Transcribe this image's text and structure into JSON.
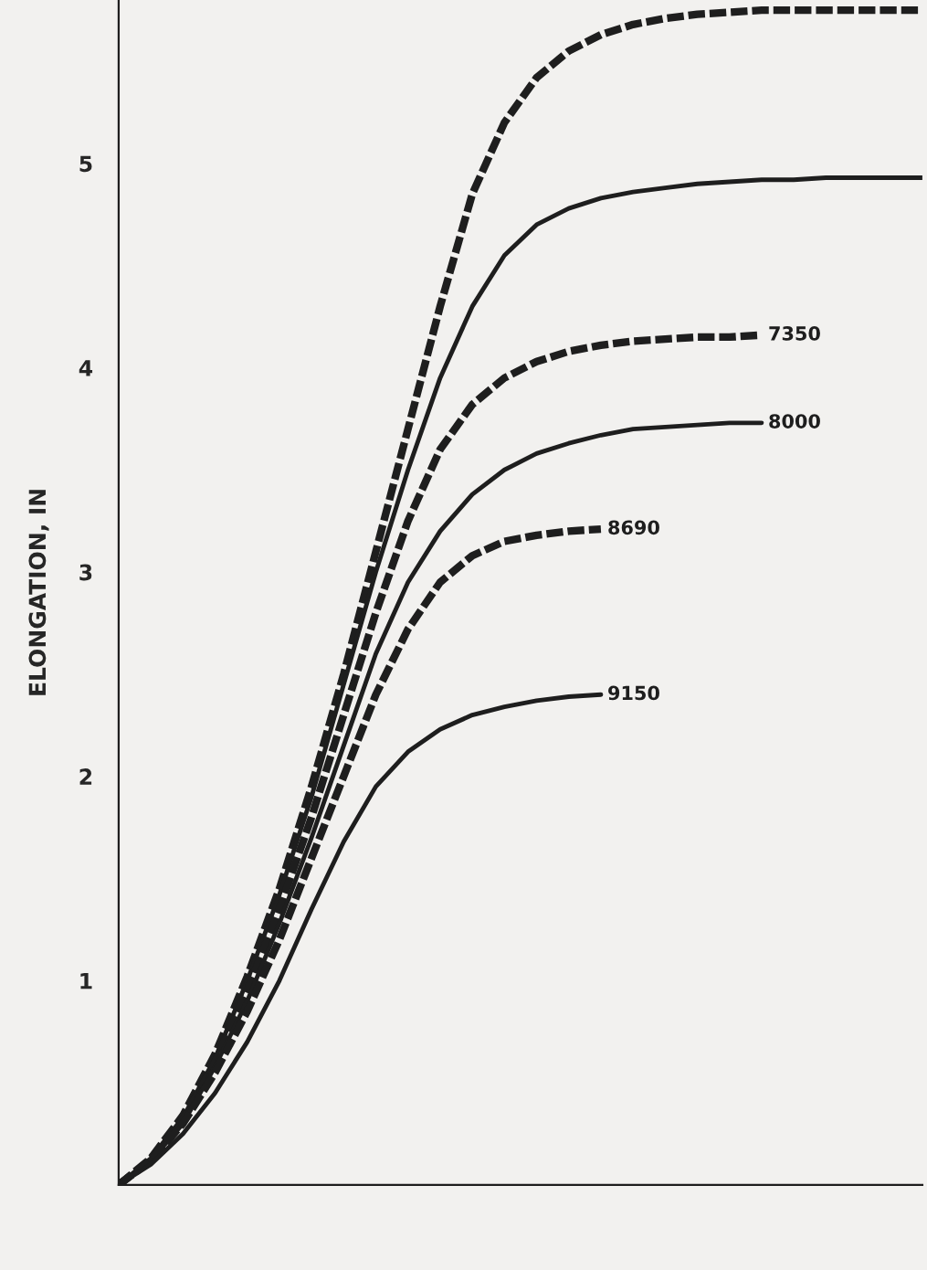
{
  "chart_data": {
    "type": "line",
    "ylabel": "ELONGATION, IN",
    "categories": [
      null,
      null,
      null,
      null,
      null,
      null,
      null,
      null,
      null,
      null,
      null,
      null,
      null,
      null,
      null,
      null,
      null,
      null,
      null,
      null,
      null,
      null,
      null,
      null,
      null,
      null
    ],
    "ylim": [
      0,
      5.8
    ],
    "yticks": [
      1,
      2,
      3,
      4,
      5
    ],
    "tick_labels": "y",
    "grid": false,
    "legend": false,
    "marker": "none",
    "series": [
      {
        "color": "#1e1e1e",
        "line_style": "dashed",
        "values": [
          0,
          0.13,
          0.34,
          0.64,
          1.02,
          1.45,
          1.95,
          2.5,
          3.1,
          3.7,
          4.3,
          4.85,
          5.2,
          5.42,
          5.55,
          5.63,
          5.68,
          5.71,
          5.73,
          5.74,
          5.75,
          5.75,
          5.75,
          5.75,
          5.75,
          5.75
        ]
      },
      {
        "color": "#1e1e1e",
        "line_style": "solid",
        "values": [
          0,
          0.13,
          0.33,
          0.62,
          1.0,
          1.42,
          1.9,
          2.45,
          3.0,
          3.5,
          3.95,
          4.3,
          4.55,
          4.7,
          4.78,
          4.83,
          4.86,
          4.88,
          4.9,
          4.91,
          4.92,
          4.92,
          4.93,
          4.93,
          4.93,
          4.93
        ]
      },
      {
        "name": "7350",
        "color": "#1e1e1e",
        "line_style": "dashed",
        "values": [
          0,
          0.12,
          0.32,
          0.6,
          0.95,
          1.35,
          1.8,
          2.3,
          2.8,
          3.25,
          3.6,
          3.82,
          3.95,
          4.03,
          4.08,
          4.11,
          4.13,
          4.14,
          4.15,
          4.15,
          4.16,
          null,
          null,
          null,
          null,
          null
        ]
      },
      {
        "name": "8000",
        "color": "#1e1e1e",
        "line_style": "solid",
        "values": [
          0,
          0.12,
          0.3,
          0.58,
          0.9,
          1.28,
          1.7,
          2.15,
          2.6,
          2.95,
          3.2,
          3.38,
          3.5,
          3.58,
          3.63,
          3.67,
          3.7,
          3.71,
          3.72,
          3.73,
          3.73,
          null,
          null,
          null,
          null,
          null
        ]
      },
      {
        "name": "8690",
        "color": "#1e1e1e",
        "line_style": "dashed",
        "values": [
          0,
          0.12,
          0.3,
          0.55,
          0.85,
          1.2,
          1.6,
          2.0,
          2.4,
          2.72,
          2.95,
          3.08,
          3.15,
          3.18,
          3.2,
          3.21,
          null,
          null,
          null,
          null,
          null,
          null,
          null,
          null,
          null,
          null
        ]
      },
      {
        "name": "9150",
        "color": "#1e1e1e",
        "line_style": "solid",
        "values": [
          0,
          0.1,
          0.25,
          0.45,
          0.7,
          1.0,
          1.35,
          1.68,
          1.95,
          2.12,
          2.23,
          2.3,
          2.34,
          2.37,
          2.39,
          2.4,
          null,
          null,
          null,
          null,
          null,
          null,
          null,
          null,
          null,
          null
        ]
      }
    ]
  }
}
